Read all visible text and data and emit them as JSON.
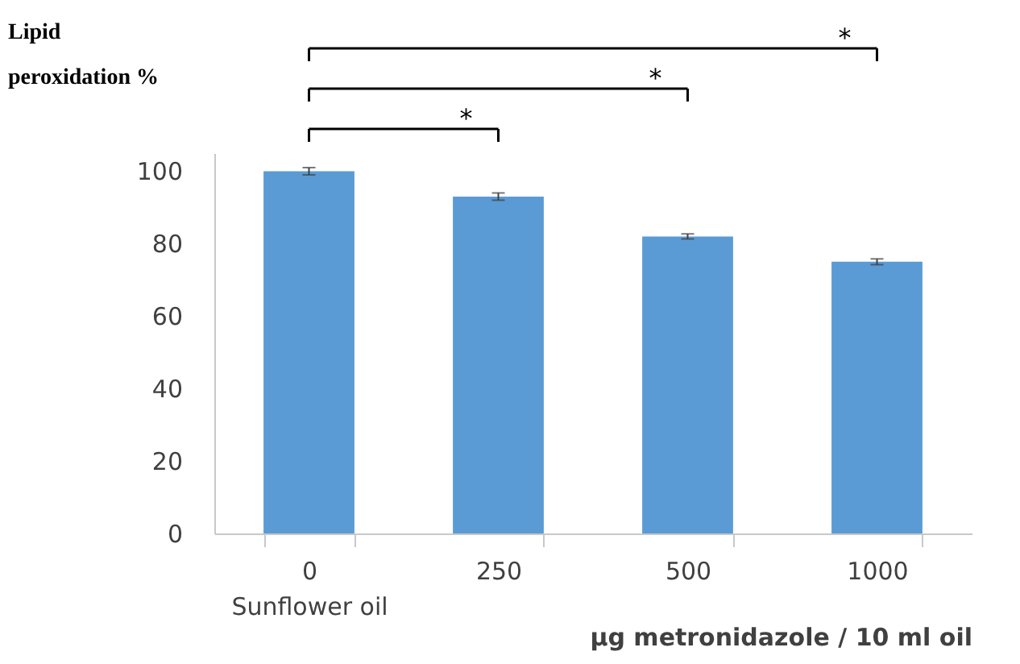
{
  "chart_data": {
    "type": "bar",
    "categories": [
      "0\nSunflower oil",
      "250",
      "500",
      "1000"
    ],
    "values": [
      100,
      93,
      82,
      75
    ],
    "errors": [
      1,
      1,
      0.7,
      0.8
    ],
    "color": "#5b9bd5",
    "ylim": [
      0,
      105
    ],
    "yticks": [
      0,
      20,
      40,
      60,
      80,
      100
    ],
    "ylabel": "Lipid\nperoxidation %",
    "xlabel": "μg metronidazole /  10 ml oil",
    "annotations": [
      "*",
      "*",
      "*"
    ],
    "grid": false
  }
}
